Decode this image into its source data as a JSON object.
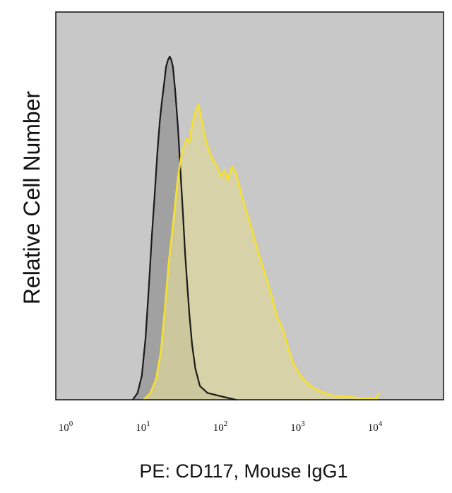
{
  "chart_data": {
    "type": "area",
    "title": "",
    "xlabel": "PE: CD117, Mouse IgG1",
    "ylabel": "Relative Cell Number",
    "xscale": "log",
    "xlim": [
      1,
      10000
    ],
    "ylim": [
      0,
      1
    ],
    "grid": false,
    "legend": "none",
    "plot_background": "#c8c8c8",
    "xticks": [
      {
        "value": 1,
        "base": "10",
        "exp": "0"
      },
      {
        "value": 10,
        "base": "10",
        "exp": "1"
      },
      {
        "value": 100,
        "base": "10",
        "exp": "2"
      },
      {
        "value": 1000,
        "base": "10",
        "exp": "3"
      },
      {
        "value": 10000,
        "base": "10",
        "exp": "4"
      }
    ],
    "series": [
      {
        "role": "isotype-control",
        "stroke": "#1a1a1a",
        "fill": "#9a9a9a",
        "points": [
          [
            6.5,
            0.0
          ],
          [
            7.5,
            0.02
          ],
          [
            8.5,
            0.07
          ],
          [
            9.5,
            0.18
          ],
          [
            10.5,
            0.33
          ],
          [
            11.5,
            0.48
          ],
          [
            12.5,
            0.6
          ],
          [
            13.5,
            0.72
          ],
          [
            14.5,
            0.81
          ],
          [
            15.5,
            0.87
          ],
          [
            16.5,
            0.92
          ],
          [
            17.5,
            0.97
          ],
          [
            18.5,
            0.99
          ],
          [
            19.5,
            1.0
          ],
          [
            20.5,
            0.99
          ],
          [
            21.5,
            0.97
          ],
          [
            23,
            0.9
          ],
          [
            25,
            0.79
          ],
          [
            27,
            0.66
          ],
          [
            29,
            0.54
          ],
          [
            31,
            0.42
          ],
          [
            33,
            0.33
          ],
          [
            35,
            0.25
          ],
          [
            38,
            0.16
          ],
          [
            42,
            0.09
          ],
          [
            48,
            0.04
          ],
          [
            60,
            0.02
          ],
          [
            90,
            0.01
          ],
          [
            140,
            0.0
          ]
        ]
      },
      {
        "role": "CD117",
        "stroke": "#f5e12e",
        "fill": "#dcd59a",
        "points": [
          [
            9,
            0.0
          ],
          [
            11,
            0.02
          ],
          [
            13,
            0.06
          ],
          [
            15,
            0.14
          ],
          [
            17,
            0.27
          ],
          [
            19,
            0.4
          ],
          [
            22,
            0.53
          ],
          [
            25,
            0.65
          ],
          [
            28,
            0.72
          ],
          [
            32,
            0.76
          ],
          [
            35,
            0.75
          ],
          [
            38,
            0.8
          ],
          [
            42,
            0.84
          ],
          [
            46,
            0.86
          ],
          [
            50,
            0.82
          ],
          [
            55,
            0.77
          ],
          [
            62,
            0.73
          ],
          [
            70,
            0.7
          ],
          [
            80,
            0.68
          ],
          [
            90,
            0.65
          ],
          [
            100,
            0.67
          ],
          [
            110,
            0.64
          ],
          [
            125,
            0.68
          ],
          [
            140,
            0.66
          ],
          [
            160,
            0.61
          ],
          [
            190,
            0.55
          ],
          [
            230,
            0.49
          ],
          [
            280,
            0.42
          ],
          [
            340,
            0.36
          ],
          [
            410,
            0.3
          ],
          [
            480,
            0.24
          ],
          [
            560,
            0.21
          ],
          [
            650,
            0.16
          ],
          [
            760,
            0.11
          ],
          [
            900,
            0.08
          ],
          [
            1050,
            0.06
          ],
          [
            1300,
            0.04
          ],
          [
            1700,
            0.025
          ],
          [
            2500,
            0.012
          ],
          [
            3500,
            0.01
          ],
          [
            5000,
            0.006
          ],
          [
            7000,
            0.004
          ],
          [
            9000,
            0.005
          ],
          [
            10000,
            0.02
          ]
        ]
      }
    ]
  }
}
